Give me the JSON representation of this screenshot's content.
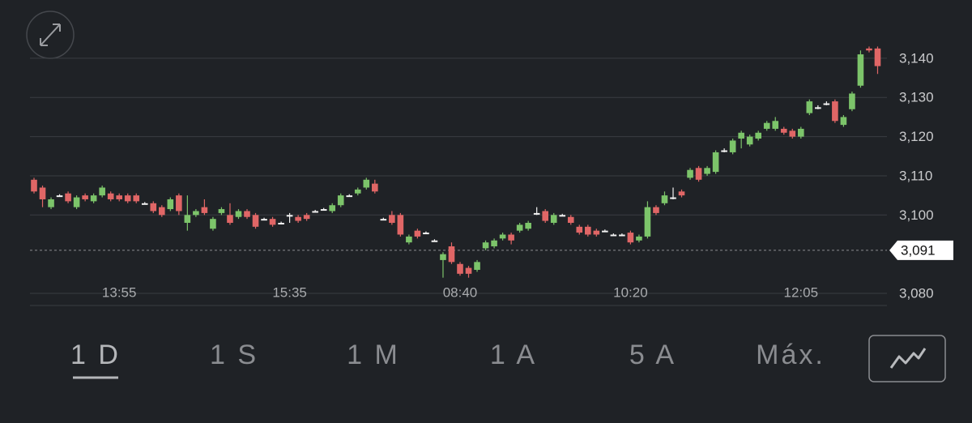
{
  "chart_data": {
    "type": "candlestick",
    "categories": [
      null,
      null,
      null,
      null,
      null,
      null,
      null,
      null,
      null,
      null,
      "13:55",
      null,
      null,
      null,
      null,
      null,
      null,
      null,
      null,
      null,
      null,
      null,
      null,
      null,
      null,
      null,
      null,
      null,
      null,
      null,
      "15:35",
      null,
      null,
      null,
      null,
      null,
      null,
      null,
      null,
      null,
      null,
      null,
      null,
      null,
      null,
      null,
      null,
      null,
      null,
      null,
      "08:40",
      null,
      null,
      null,
      null,
      null,
      null,
      null,
      null,
      null,
      null,
      null,
      null,
      null,
      null,
      null,
      null,
      null,
      null,
      null,
      "10:20",
      null,
      null,
      null,
      null,
      null,
      null,
      null,
      null,
      null,
      null,
      null,
      null,
      null,
      null,
      null,
      null,
      null,
      null,
      null,
      "12:05",
      null,
      null,
      null,
      null,
      null,
      null,
      null,
      null,
      null
    ],
    "open": [
      3109,
      3107,
      3102,
      3105,
      3105.5,
      3102,
      3105,
      3103.5,
      3105,
      3105.5,
      3105,
      3105,
      3105,
      3103,
      3103,
      3102,
      3101.5,
      3105,
      3098,
      3100,
      3102,
      3096.5,
      3100.5,
      3100,
      3099.5,
      3101,
      3100,
      3099,
      3099,
      3098,
      3100,
      3099.5,
      3100,
      3101,
      3101.5,
      3101,
      3102.5,
      3105,
      3105.5,
      3107,
      3108,
      3099,
      3100,
      3100,
      3093,
      3096,
      3095.5,
      3093.5,
      3088.5,
      3092,
      3087.5,
      3086.5,
      3086,
      3091.5,
      3092,
      3094,
      3095,
      3096,
      3096.5,
      3100.5,
      3101,
      3098,
      3100,
      3099.5,
      3097,
      3097,
      3096,
      3096,
      3095,
      3095,
      3095.5,
      3093.5,
      3094.5,
      3102,
      3103,
      3104.5,
      3106,
      3109.5,
      3112,
      3110.5,
      3111,
      3116.5,
      3116,
      3119.5,
      3118,
      3119.5,
      3122,
      3122,
      3122,
      3121.5,
      3120,
      3126,
      3127.5,
      3128.5,
      3129,
      3123,
      3127,
      3133,
      3142.5,
      3142.5
    ],
    "high": [
      3109.5,
      3107.5,
      3104.5,
      3105.3,
      3106,
      3105,
      3105.5,
      3105.5,
      3107.5,
      3106,
      3105.5,
      3105.5,
      3105.5,
      3103.3,
      3103.5,
      3102.5,
      3104.5,
      3105.5,
      3105,
      3101.5,
      3104,
      3099.5,
      3102,
      3103,
      3101.5,
      3101.5,
      3100.5,
      3099.3,
      3099.5,
      3098.3,
      3100.5,
      3100,
      3100.5,
      3101.3,
      3101.8,
      3103,
      3105.5,
      3105.3,
      3107,
      3109.5,
      3109,
      3099.3,
      3101,
      3100.5,
      3095,
      3096.5,
      3095.8,
      3093.8,
      3090.5,
      3093,
      3088,
      3087,
      3088.5,
      3093.5,
      3094,
      3095.5,
      3095.5,
      3098,
      3098.5,
      3102,
      3101.5,
      3100.5,
      3100.3,
      3100,
      3097.5,
      3097.5,
      3096.5,
      3096.3,
      3095.3,
      3095.3,
      3096,
      3095,
      3103.5,
      3102.5,
      3106,
      3107,
      3106.5,
      3112,
      3112.5,
      3112.5,
      3116.5,
      3117,
      3119.5,
      3121.5,
      3120.5,
      3121.5,
      3124,
      3125,
      3122.5,
      3122,
      3122.5,
      3129.5,
      3128,
      3129,
      3129.5,
      3125.5,
      3131.5,
      3142,
      3143,
      3143
    ],
    "low": [
      3105.5,
      3102,
      3101.5,
      3104.7,
      3103,
      3101.5,
      3103.5,
      3103,
      3104.5,
      3103.5,
      3103.5,
      3103,
      3103,
      3102.7,
      3100.5,
      3099.5,
      3101,
      3100,
      3096,
      3099.5,
      3100,
      3096,
      3100,
      3097.5,
      3099,
      3099,
      3096.5,
      3098.7,
      3097,
      3097.7,
      3098,
      3098,
      3098.5,
      3100.7,
      3101.2,
      3100.5,
      3102,
      3104.7,
      3105,
      3106.5,
      3105.5,
      3098.7,
      3097.5,
      3094.5,
      3092.5,
      3094,
      3095.2,
      3093.2,
      3084,
      3087.5,
      3084.5,
      3084,
      3085.5,
      3091,
      3091.5,
      3093.5,
      3092.5,
      3095.5,
      3096,
      3100,
      3098,
      3097.5,
      3099.7,
      3097.5,
      3095,
      3094.5,
      3094.5,
      3095.7,
      3094.7,
      3094.7,
      3092.5,
      3093,
      3094,
      3100,
      3102.5,
      3104,
      3104.5,
      3109,
      3108.5,
      3110,
      3110.5,
      3116,
      3115.5,
      3117,
      3117.5,
      3119,
      3121.5,
      3121.5,
      3120.5,
      3119.5,
      3119.5,
      3125.5,
      3127,
      3128,
      3123.5,
      3122.5,
      3126.5,
      3132.5,
      3141.5,
      3136
    ],
    "close": [
      3106,
      3104,
      3104,
      3105,
      3103.5,
      3104.5,
      3104,
      3105,
      3107,
      3104,
      3104,
      3103.5,
      3103.5,
      3103,
      3101,
      3100,
      3104,
      3101,
      3100,
      3101,
      3100.5,
      3099,
      3101.5,
      3098,
      3101,
      3099.5,
      3097,
      3099,
      3097.5,
      3098,
      3100,
      3098.5,
      3099,
      3101,
      3101.5,
      3102.5,
      3105,
      3105,
      3106.5,
      3109,
      3106,
      3099,
      3098,
      3095,
      3094.5,
      3094.5,
      3095.5,
      3093.5,
      3090,
      3088,
      3085,
      3085,
      3088,
      3093,
      3093.5,
      3095,
      3093.5,
      3097.5,
      3098,
      3100.5,
      3098.5,
      3100,
      3100,
      3098,
      3095.5,
      3095,
      3095,
      3096,
      3095,
      3095,
      3093,
      3094.5,
      3102,
      3100.5,
      3105,
      3104.5,
      3105,
      3111.5,
      3109,
      3112,
      3116,
      3116.5,
      3119,
      3121,
      3120,
      3121,
      3123.5,
      3124,
      3121,
      3120,
      3122,
      3129,
      3127.5,
      3128.5,
      3124,
      3125,
      3131,
      3141,
      3142,
      3138
    ],
    "up_color": "#7cc46a",
    "down_color": "#e06666",
    "doji_color": "#f2f2f2",
    "ylim": [
      3076.9,
      3146.6
    ],
    "yticks": [
      {
        "value": 3080,
        "label": "3,080"
      },
      {
        "value": 3100,
        "label": "3,100"
      },
      {
        "value": 3110,
        "label": "3,110"
      },
      {
        "value": 3120,
        "label": "3,120"
      },
      {
        "value": 3130,
        "label": "3,130"
      },
      {
        "value": 3140,
        "label": "3,140"
      }
    ],
    "grid": true,
    "reference_line": {
      "value": 3091,
      "label": "3,091"
    }
  },
  "ranges": [
    "1 D",
    "1 S",
    "1 M",
    "1 A",
    "5 A",
    "Máx."
  ],
  "selected_range": 0
}
